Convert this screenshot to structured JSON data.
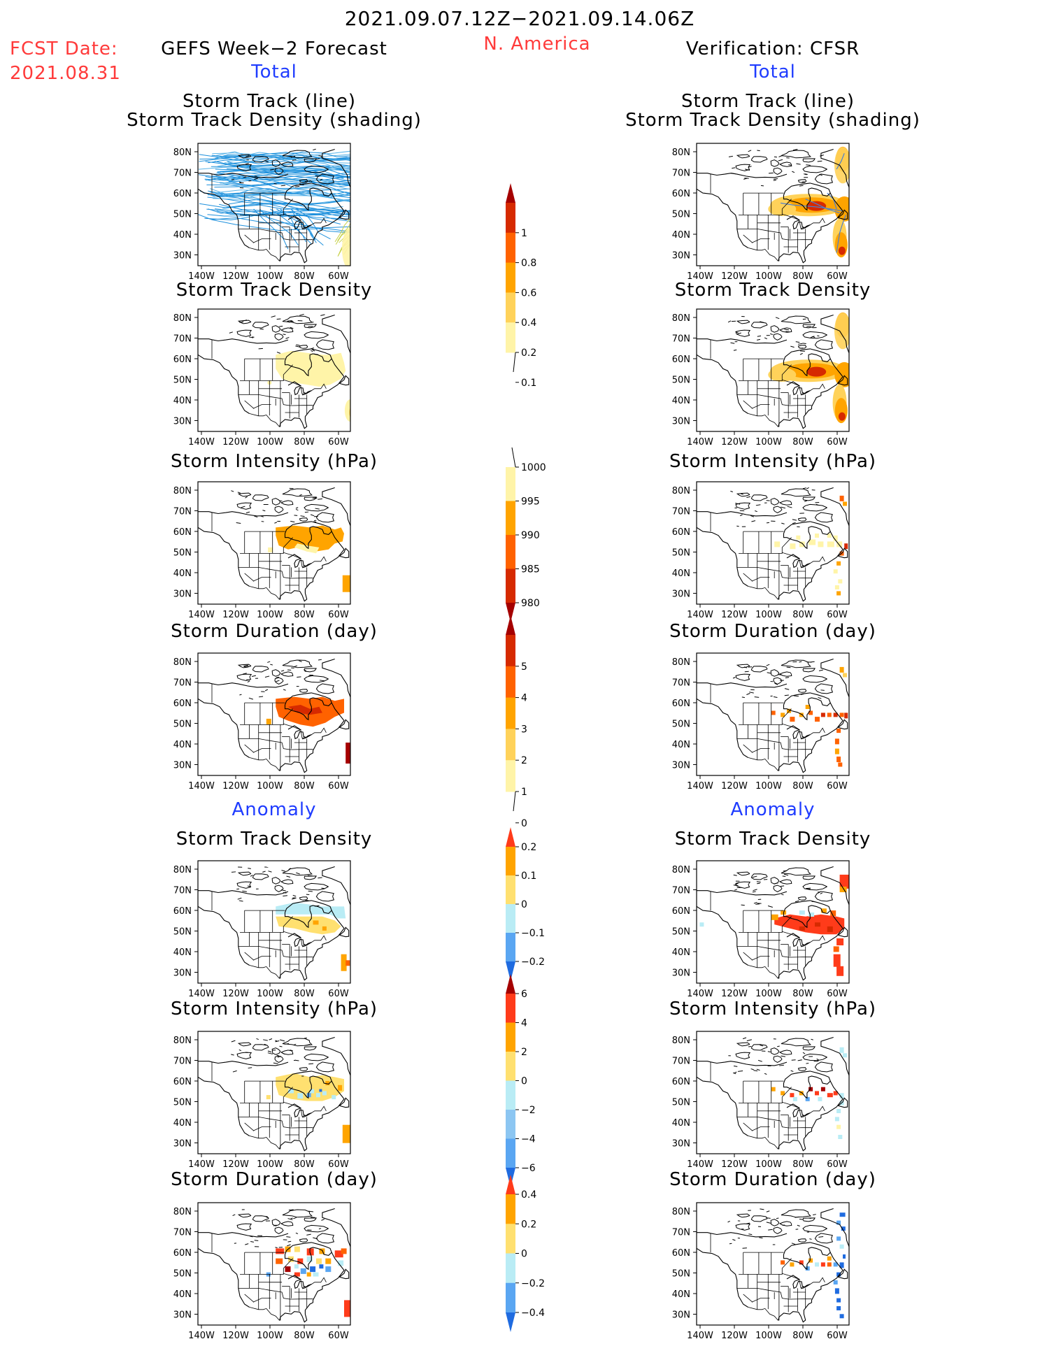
{
  "header": {
    "period": "2021.09.07.12Z−2021.09.14.06Z",
    "fcst_label": "FCST Date:",
    "fcst_date": "2021.08.31",
    "left_title": "GEFS Week−2 Forecast",
    "region": "N. America",
    "right_title": "Verification: CFSR",
    "total_label": "Total",
    "anomaly_label": "Anomaly"
  },
  "panel_titles": {
    "track_line": "Storm Track (line)",
    "track_shading": "Storm Track Density (shading)",
    "density": "Storm Track Density",
    "intensity": "Storm Intensity (hPa)",
    "duration": "Storm Duration (day)"
  },
  "axes": {
    "lat_ticks": [
      "80N",
      "70N",
      "60N",
      "50N",
      "40N",
      "30N"
    ],
    "lon_ticks": [
      "140W",
      "120W",
      "100W",
      "80W",
      "60W"
    ]
  },
  "colorbars": {
    "density_total": {
      "labels": [
        "1",
        "0.8",
        "0.6",
        "0.4",
        "0.2",
        "0.1"
      ],
      "colors": [
        "#a50000",
        "#d62a00",
        "#ff6200",
        "#ffa400",
        "#ffd25a",
        "#fff4a8"
      ]
    },
    "intensity_total": {
      "labels": [
        "1000",
        "995",
        "990",
        "985",
        "980"
      ],
      "colors": [
        "#fff4a8",
        "#ffa400",
        "#ff6200",
        "#d62a00",
        "#a50000"
      ]
    },
    "duration_total": {
      "labels": [
        "5",
        "4",
        "3",
        "2",
        "1",
        "0"
      ],
      "colors": [
        "#a50000",
        "#d62a00",
        "#ff6200",
        "#ffa400",
        "#ffd25a",
        "#fff4a8"
      ]
    },
    "density_anom": {
      "labels": [
        "0.2",
        "0.1",
        "0",
        "−0.1",
        "−0.2"
      ],
      "colors": [
        "#ff3b1a",
        "#ffa400",
        "#ffe070",
        "#b9ecf5",
        "#5aa6f2",
        "#1f6be0"
      ]
    },
    "intensity_anom": {
      "labels": [
        "6",
        "4",
        "2",
        "0",
        "−2",
        "−4",
        "−6"
      ],
      "colors": [
        "#a50000",
        "#ff3b1a",
        "#ffa400",
        "#ffe070",
        "#b9ecf5",
        "#8cc6f2",
        "#5aa6f2",
        "#1f6be0"
      ]
    },
    "duration_anom": {
      "labels": [
        "0.4",
        "0.2",
        "0",
        "−0.2",
        "−0.4"
      ],
      "colors": [
        "#ff3b1a",
        "#ffa400",
        "#ffe070",
        "#b9ecf5",
        "#5aa6f2",
        "#1f6be0"
      ]
    }
  },
  "palette": {
    "forecast_tracks": "#1e90dc",
    "verification_tracks": "#4a7fd0",
    "coastline": "#000000"
  }
}
